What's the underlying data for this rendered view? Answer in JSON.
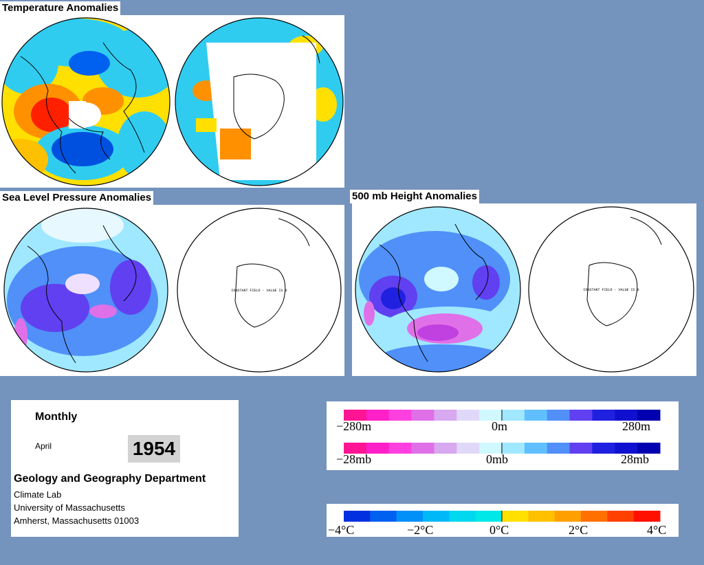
{
  "titles": {
    "temperature": "Temperature Anomalies",
    "slp": "Sea Level Pressure Anomalies",
    "height": "500 mb Height Anomalies"
  },
  "constant_field_note": "CONSTANT FIELD - VALUE IS 0",
  "info": {
    "period": "Monthly",
    "month": "April",
    "year": "1954",
    "department": "Geology and Geography Department",
    "lab": "Climate Lab",
    "university": "University of Massachusetts",
    "address": "Amherst, Massachusetts 01003"
  },
  "legend_height": {
    "min": "−280m",
    "mid": "0m",
    "max": "280m",
    "colors": [
      "#ff1493",
      "#ff20c8",
      "#ff40e0",
      "#e070e8",
      "#d8a8f0",
      "#e0d8f8",
      "#d0f8ff",
      "#a0e8ff",
      "#60c0ff",
      "#5090f8",
      "#6040f0",
      "#2020e0",
      "#1010d0",
      "#0000b0"
    ]
  },
  "legend_slp": {
    "min": "−28mb",
    "mid": "0mb",
    "max": "28mb"
  },
  "legend_temp": {
    "min": "−4°C",
    "m2": "−2°C",
    "mid": "0°C",
    "p2": "2°C",
    "max": "4°C",
    "colors": [
      "#0030e0",
      "#0060f0",
      "#0090f8",
      "#00b8f8",
      "#00d8f0",
      "#00e8e8",
      "#ffe000",
      "#ffc000",
      "#ffa000",
      "#ff7000",
      "#ff4000",
      "#ff1000"
    ]
  },
  "map_colors": {
    "cyan": "#30ccf0",
    "yellow": "#ffe000",
    "orange": "#ff9000",
    "red": "#ff2000",
    "blue": "#0050e0",
    "lightblue": "#a0e8ff",
    "medblue": "#5090f8",
    "purple": "#6040f0",
    "pink": "#e070e8"
  }
}
